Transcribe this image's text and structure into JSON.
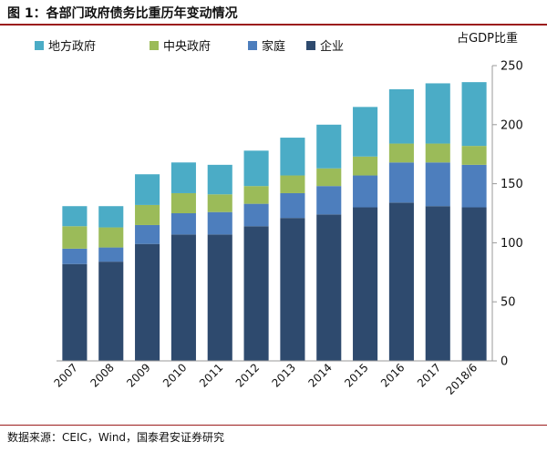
{
  "title": "图 1：各部门政府债务比重历年变动情况",
  "source": "数据来源：CEIC，Wind，国泰君安证券研究",
  "colors": {
    "corp": "#2e4a6e",
    "household": "#4d7ebd",
    "central": "#9bbb59",
    "local": "#4bacc6",
    "rule": "#9b1c1c"
  },
  "chart_data": {
    "type": "bar",
    "stacked": true,
    "ylabel": "占GDP比重",
    "ylim": [
      0,
      250
    ],
    "yticks": [
      0,
      50,
      100,
      150,
      200,
      250
    ],
    "categories": [
      "2007",
      "2008",
      "2009",
      "2010",
      "2011",
      "2012",
      "2013",
      "2014",
      "2015",
      "2016",
      "2017",
      "2018/6"
    ],
    "legend": [
      "地方政府",
      "中央政府",
      "家庭",
      "企业"
    ],
    "series": [
      {
        "key": "corp",
        "name": "企业",
        "values": [
          82,
          84,
          99,
          107,
          107,
          114,
          121,
          124,
          130,
          134,
          131,
          130
        ]
      },
      {
        "key": "household",
        "name": "家庭",
        "values": [
          13,
          12,
          16,
          18,
          19,
          19,
          21,
          24,
          27,
          34,
          37,
          36
        ]
      },
      {
        "key": "central",
        "name": "中央政府",
        "values": [
          19,
          17,
          17,
          17,
          15,
          15,
          15,
          15,
          16,
          16,
          16,
          16
        ]
      },
      {
        "key": "local",
        "name": "地方政府",
        "values": [
          17,
          18,
          26,
          26,
          25,
          30,
          32,
          37,
          42,
          46,
          51,
          54
        ]
      }
    ]
  }
}
